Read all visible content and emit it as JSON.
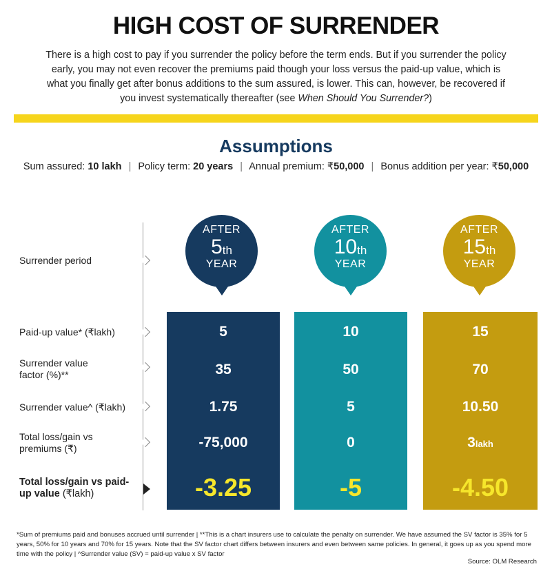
{
  "title": "HIGH COST OF SURRENDER",
  "intro": {
    "text": "There is a high cost to pay if you surrender the policy before the term ends. But if you surrender the policy early, you may not even recover the premiums paid though your loss versus the paid-up value, which is what you finally get after bonus additions to the sum assured, is lower. This can, however, be recovered if you invest systematically thereafter (see ",
    "ref": "When Should You Surrender?",
    "close": ")"
  },
  "colors": {
    "band": "#f6d51c",
    "navy": "#163a5f",
    "teal": "#12919f",
    "gold": "#c49c10",
    "highlight": "#f6e62b"
  },
  "assumptions": {
    "title": "Assumptions",
    "items": [
      {
        "label": "Sum assured: ",
        "value": "10 lakh"
      },
      {
        "label": "Policy term: ",
        "value": "20 years"
      },
      {
        "label": "Annual premium: ₹",
        "value": "50,000"
      },
      {
        "label": "Bonus addition per year: ₹",
        "value": "50,000"
      }
    ],
    "separator": "|"
  },
  "row_labels": {
    "period": "Surrender period",
    "paid_up": "Paid-up value* (₹lakh)",
    "sv_factor": "Surrender value factor (%)**",
    "sv": "Surrender value^ (₹lakh)",
    "loss_premiums": "Total loss/gain vs premiums (₹)",
    "loss_paidup_bold": "Total loss/gain vs paid-up value",
    "loss_paidup_unit": " (₹lakh)"
  },
  "columns": [
    {
      "after": "AFTER",
      "num": "5",
      "suffix": "th",
      "year": "YEAR",
      "paid_up": "5",
      "sv_factor": "35",
      "sv": "1.75",
      "loss_premiums": "-75,000",
      "loss_premiums_unit": "",
      "loss_paidup": "-3.25"
    },
    {
      "after": "AFTER",
      "num": "10",
      "suffix": "th",
      "year": "YEAR",
      "paid_up": "10",
      "sv_factor": "50",
      "sv": "5",
      "loss_premiums": "0",
      "loss_premiums_unit": "",
      "loss_paidup": "-5"
    },
    {
      "after": "AFTER",
      "num": "15",
      "suffix": "th",
      "year": "YEAR",
      "paid_up": "15",
      "sv_factor": "70",
      "sv": "10.50",
      "loss_premiums": "3",
      "loss_premiums_unit": "lakh",
      "loss_paidup": "-4.50"
    }
  ],
  "footnote": "*Sum of premiums paid and bonuses accrued until surrender  |  **This is a chart insurers use to calculate the penalty on surrender. We have assumed the SV factor is 35% for 5 years, 50% for 10 years and 70% for 15 years. Note that the SV factor chart differs between insurers and even between same policies. In general, it goes up as you spend more time with the policy  |  ^Surrender value (SV) = paid-up value x SV factor",
  "source": "Source: OLM Research"
}
